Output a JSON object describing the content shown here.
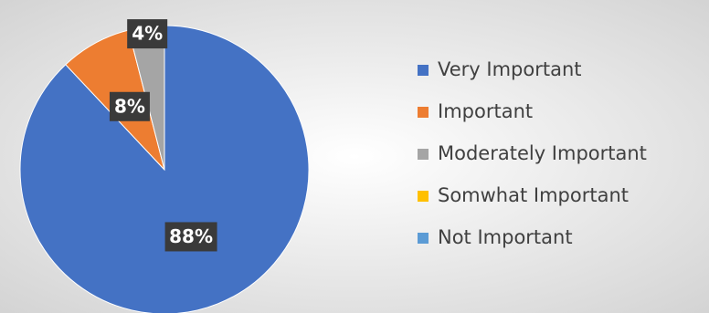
{
  "chart_data": {
    "type": "pie",
    "categories": [
      "Very Important",
      "Important",
      "Moderately Important",
      "Somwhat Important",
      "Not Important"
    ],
    "values": [
      88,
      8,
      4,
      0,
      0
    ],
    "value_labels": [
      "88%",
      "8%",
      "4%",
      null,
      null
    ],
    "colors": [
      "#4472c4",
      "#ed7d31",
      "#a5a5a5",
      "#ffc000",
      "#5b9bd5"
    ],
    "legend": "right"
  }
}
